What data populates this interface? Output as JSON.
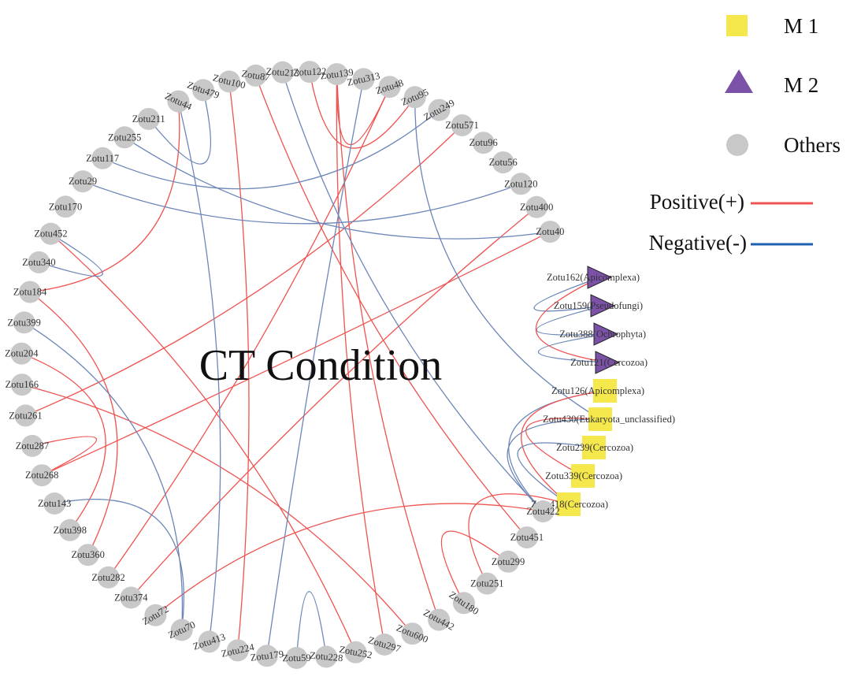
{
  "title": "CT Condition",
  "colors": {
    "positive": "#ef5350",
    "negative": "#6b86b8",
    "legend_negative": "#1f5fb0",
    "m1": "#f5e84c",
    "m2": "#7b52a8",
    "others": "#c8c8c8"
  },
  "legend": {
    "m1": "M 1",
    "m2": "M 2",
    "others": "Others",
    "positive": "Positive(+)",
    "negative": "Negative(-)"
  },
  "nodes": [
    {
      "id": "Zotu44",
      "group": "others",
      "label": "Zotu44"
    },
    {
      "id": "Zotu479",
      "group": "others",
      "label": "Zotu479"
    },
    {
      "id": "Zotu100",
      "group": "others",
      "label": "Zotu100"
    },
    {
      "id": "Zotu87",
      "group": "others",
      "label": "Zotu87"
    },
    {
      "id": "Zotu213",
      "group": "others",
      "label": "Zotu213"
    },
    {
      "id": "Zotu122",
      "group": "others",
      "label": "Zotu122"
    },
    {
      "id": "Zotu139",
      "group": "others",
      "label": "Zotu139"
    },
    {
      "id": "Zotu313",
      "group": "others",
      "label": "Zotu313"
    },
    {
      "id": "Zotu48",
      "group": "others",
      "label": "Zotu48"
    },
    {
      "id": "Zotu95",
      "group": "others",
      "label": "Zotu95"
    },
    {
      "id": "Zotu249",
      "group": "others",
      "label": "Zotu249"
    },
    {
      "id": "Zotu571",
      "group": "others",
      "label": "Zotu571"
    },
    {
      "id": "Zotu96",
      "group": "others",
      "label": "Zotu96"
    },
    {
      "id": "Zotu56",
      "group": "others",
      "label": "Zotu56"
    },
    {
      "id": "Zotu120",
      "group": "others",
      "label": "Zotu120"
    },
    {
      "id": "Zotu400",
      "group": "others",
      "label": "Zotu400"
    },
    {
      "id": "Zotu40",
      "group": "others",
      "label": "Zotu40"
    },
    {
      "id": "Zotu162",
      "group": "m2",
      "label": "Zotu162(Apicomplexa)"
    },
    {
      "id": "Zotu159",
      "group": "m2",
      "label": "Zotu159(Pseudofungi)"
    },
    {
      "id": "Zotu388",
      "group": "m2",
      "label": "Zotu388(Ochrophyta)"
    },
    {
      "id": "Zotu121",
      "group": "m2",
      "label": "Zotu121(Cercozoa)"
    },
    {
      "id": "Zotu126",
      "group": "m1",
      "label": "Zotu126(Apicomplexa)"
    },
    {
      "id": "Zotu430",
      "group": "m1",
      "label": "Zotu430(Eukaryota_unclassified)"
    },
    {
      "id": "Zotu239",
      "group": "m1",
      "label": "Zotu239(Cercozoa)"
    },
    {
      "id": "Zotu339",
      "group": "m1",
      "label": "Zotu339(Cercozoa)"
    },
    {
      "id": "Zotu418",
      "group": "m1",
      "label": "Zotu418(Cercozoa)"
    },
    {
      "id": "Zotu422",
      "group": "others",
      "label": "Zotu422"
    },
    {
      "id": "Zotu451",
      "group": "others",
      "label": "Zotu451"
    },
    {
      "id": "Zotu299",
      "group": "others",
      "label": "Zotu299"
    },
    {
      "id": "Zotu251",
      "group": "others",
      "label": "Zotu251"
    },
    {
      "id": "Zotu180",
      "group": "others",
      "label": "Zotu180"
    },
    {
      "id": "Zotu442",
      "group": "others",
      "label": "Zotu442"
    },
    {
      "id": "Zotu600",
      "group": "others",
      "label": "Zotu600"
    },
    {
      "id": "Zotu297",
      "group": "others",
      "label": "Zotu297"
    },
    {
      "id": "Zotu252",
      "group": "others",
      "label": "Zotu252"
    },
    {
      "id": "Zotu228",
      "group": "others",
      "label": "Zotu228"
    },
    {
      "id": "Zotu59",
      "group": "others",
      "label": "Zotu59"
    },
    {
      "id": "Zotu179",
      "group": "others",
      "label": "Zotu179"
    },
    {
      "id": "Zotu224",
      "group": "others",
      "label": "Zotu224"
    },
    {
      "id": "Zotu413",
      "group": "others",
      "label": "Zotu413"
    },
    {
      "id": "Zotu70",
      "group": "others",
      "label": "Zotu70"
    },
    {
      "id": "Zotu72",
      "group": "others",
      "label": "Zotu72"
    },
    {
      "id": "Zotu374",
      "group": "others",
      "label": "Zotu374"
    },
    {
      "id": "Zotu282",
      "group": "others",
      "label": "Zotu282"
    },
    {
      "id": "Zotu360",
      "group": "others",
      "label": "Zotu360"
    },
    {
      "id": "Zotu398",
      "group": "others",
      "label": "Zotu398"
    },
    {
      "id": "Zotu143",
      "group": "others",
      "label": "Zotu143"
    },
    {
      "id": "Zotu268",
      "group": "others",
      "label": "Zotu268"
    },
    {
      "id": "Zotu287",
      "group": "others",
      "label": "Zotu287"
    },
    {
      "id": "Zotu261",
      "group": "others",
      "label": "Zotu261"
    },
    {
      "id": "Zotu166",
      "group": "others",
      "label": "Zotu166"
    },
    {
      "id": "Zotu204",
      "group": "others",
      "label": "Zotu204"
    },
    {
      "id": "Zotu399",
      "group": "others",
      "label": "Zotu399"
    },
    {
      "id": "Zotu184",
      "group": "others",
      "label": "Zotu184"
    },
    {
      "id": "Zotu340",
      "group": "others",
      "label": "Zotu340"
    },
    {
      "id": "Zotu452",
      "group": "others",
      "label": "Zotu452"
    },
    {
      "id": "Zotu170",
      "group": "others",
      "label": "Zotu170"
    },
    {
      "id": "Zotu29",
      "group": "others",
      "label": "Zotu29"
    },
    {
      "id": "Zotu117",
      "group": "others",
      "label": "Zotu117"
    },
    {
      "id": "Zotu255",
      "group": "others",
      "label": "Zotu255"
    },
    {
      "id": "Zotu211",
      "group": "others",
      "label": "Zotu211"
    }
  ],
  "edges": [
    {
      "source": "Zotu87",
      "target": "Zotu451",
      "sign": "positive"
    },
    {
      "source": "Zotu139",
      "target": "Zotu442",
      "sign": "positive"
    },
    {
      "source": "Zotu139",
      "target": "Zotu48",
      "sign": "positive"
    },
    {
      "source": "Zotu122",
      "target": "Zotu95",
      "sign": "positive"
    },
    {
      "source": "Zotu139",
      "target": "Zotu297",
      "sign": "positive"
    },
    {
      "source": "Zotu48",
      "target": "Zotu282",
      "sign": "positive"
    },
    {
      "source": "Zotu571",
      "target": "Zotu261",
      "sign": "positive"
    },
    {
      "source": "Zotu400",
      "target": "Zotu374",
      "sign": "positive"
    },
    {
      "source": "Zotu40",
      "target": "Zotu268",
      "sign": "positive"
    },
    {
      "source": "Zotu44",
      "target": "Zotu184",
      "sign": "positive"
    },
    {
      "source": "Zotu100",
      "target": "Zotu224",
      "sign": "positive"
    },
    {
      "source": "Zotu452",
      "target": "Zotu252",
      "sign": "positive"
    },
    {
      "source": "Zotu184",
      "target": "Zotu360",
      "sign": "positive"
    },
    {
      "source": "Zotu204",
      "target": "Zotu398",
      "sign": "positive"
    },
    {
      "source": "Zotu166",
      "target": "Zotu600",
      "sign": "positive"
    },
    {
      "source": "Zotu287",
      "target": "Zotu268",
      "sign": "positive"
    },
    {
      "source": "Zotu72",
      "target": "Zotu422",
      "sign": "positive"
    },
    {
      "source": "Zotu180",
      "target": "Zotu299",
      "sign": "positive"
    },
    {
      "source": "Zotu251",
      "target": "Zotu418",
      "sign": "positive"
    },
    {
      "source": "Zotu313",
      "target": "Zotu179",
      "sign": "negative"
    },
    {
      "source": "Zotu213",
      "target": "Zotu422",
      "sign": "negative"
    },
    {
      "source": "Zotu255",
      "target": "Zotu40",
      "sign": "negative"
    },
    {
      "source": "Zotu249",
      "target": "Zotu117",
      "sign": "negative"
    },
    {
      "source": "Zotu29",
      "target": "Zotu120",
      "sign": "negative"
    },
    {
      "source": "Zotu95",
      "target": "Zotu430",
      "sign": "negative"
    },
    {
      "source": "Zotu479",
      "target": "Zotu211",
      "sign": "negative"
    },
    {
      "source": "Zotu44",
      "target": "Zotu413",
      "sign": "negative"
    },
    {
      "source": "Zotu399",
      "target": "Zotu70",
      "sign": "negative"
    },
    {
      "source": "Zotu143",
      "target": "Zotu70",
      "sign": "negative"
    },
    {
      "source": "Zotu452",
      "target": "Zotu340",
      "sign": "negative"
    },
    {
      "source": "Zotu59",
      "target": "Zotu228",
      "sign": "negative"
    },
    {
      "source": "Zotu422",
      "target": "Zotu430",
      "sign": "negative"
    },
    {
      "source": "Zotu422",
      "target": "Zotu126",
      "sign": "negative"
    },
    {
      "source": "Zotu162",
      "target": "Zotu159",
      "sign": "negative"
    },
    {
      "source": "Zotu159",
      "target": "Zotu388",
      "sign": "negative"
    },
    {
      "source": "Zotu388",
      "target": "Zotu121",
      "sign": "negative"
    },
    {
      "source": "Zotu162",
      "target": "Zotu121",
      "sign": "positive"
    },
    {
      "source": "Zotu126",
      "target": "Zotu418",
      "sign": "positive"
    },
    {
      "source": "Zotu430",
      "target": "Zotu339",
      "sign": "positive"
    },
    {
      "source": "Zotu239",
      "target": "Zotu418",
      "sign": "negative"
    }
  ]
}
